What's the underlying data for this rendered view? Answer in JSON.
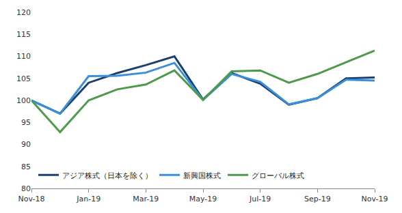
{
  "chart_data": {
    "type": "line",
    "categories": [
      "Nov-18",
      null,
      "Jan-19",
      null,
      "Mar-19",
      null,
      "May-19",
      null,
      "Jul-19",
      null,
      "Sep-19",
      null,
      "Nov-19"
    ],
    "series": [
      {
        "name": "アジア株式（日本を除く）",
        "color": "#1c3f6e",
        "values": [
          100,
          97,
          104,
          106.2,
          108,
          110,
          100.2,
          106.2,
          103.8,
          99,
          100.5,
          105,
          105.2
        ]
      },
      {
        "name": "新興国株式",
        "color": "#3a8fdc",
        "values": [
          100,
          97,
          105.5,
          105.6,
          106.3,
          108.5,
          100.1,
          106,
          104.2,
          99.1,
          100.5,
          104.7,
          104.5
        ]
      },
      {
        "name": "グローバル株式",
        "color": "#4e9a4b",
        "values": [
          100,
          92.8,
          100,
          102.5,
          103.6,
          106.8,
          100.1,
          106.6,
          106.8,
          104,
          106,
          108.7,
          111.3
        ]
      }
    ],
    "ylim": [
      80,
      120
    ],
    "yticks": [
      80,
      85,
      90,
      95,
      100,
      105,
      110,
      115,
      120
    ],
    "grid": false,
    "legend": "lower left"
  }
}
